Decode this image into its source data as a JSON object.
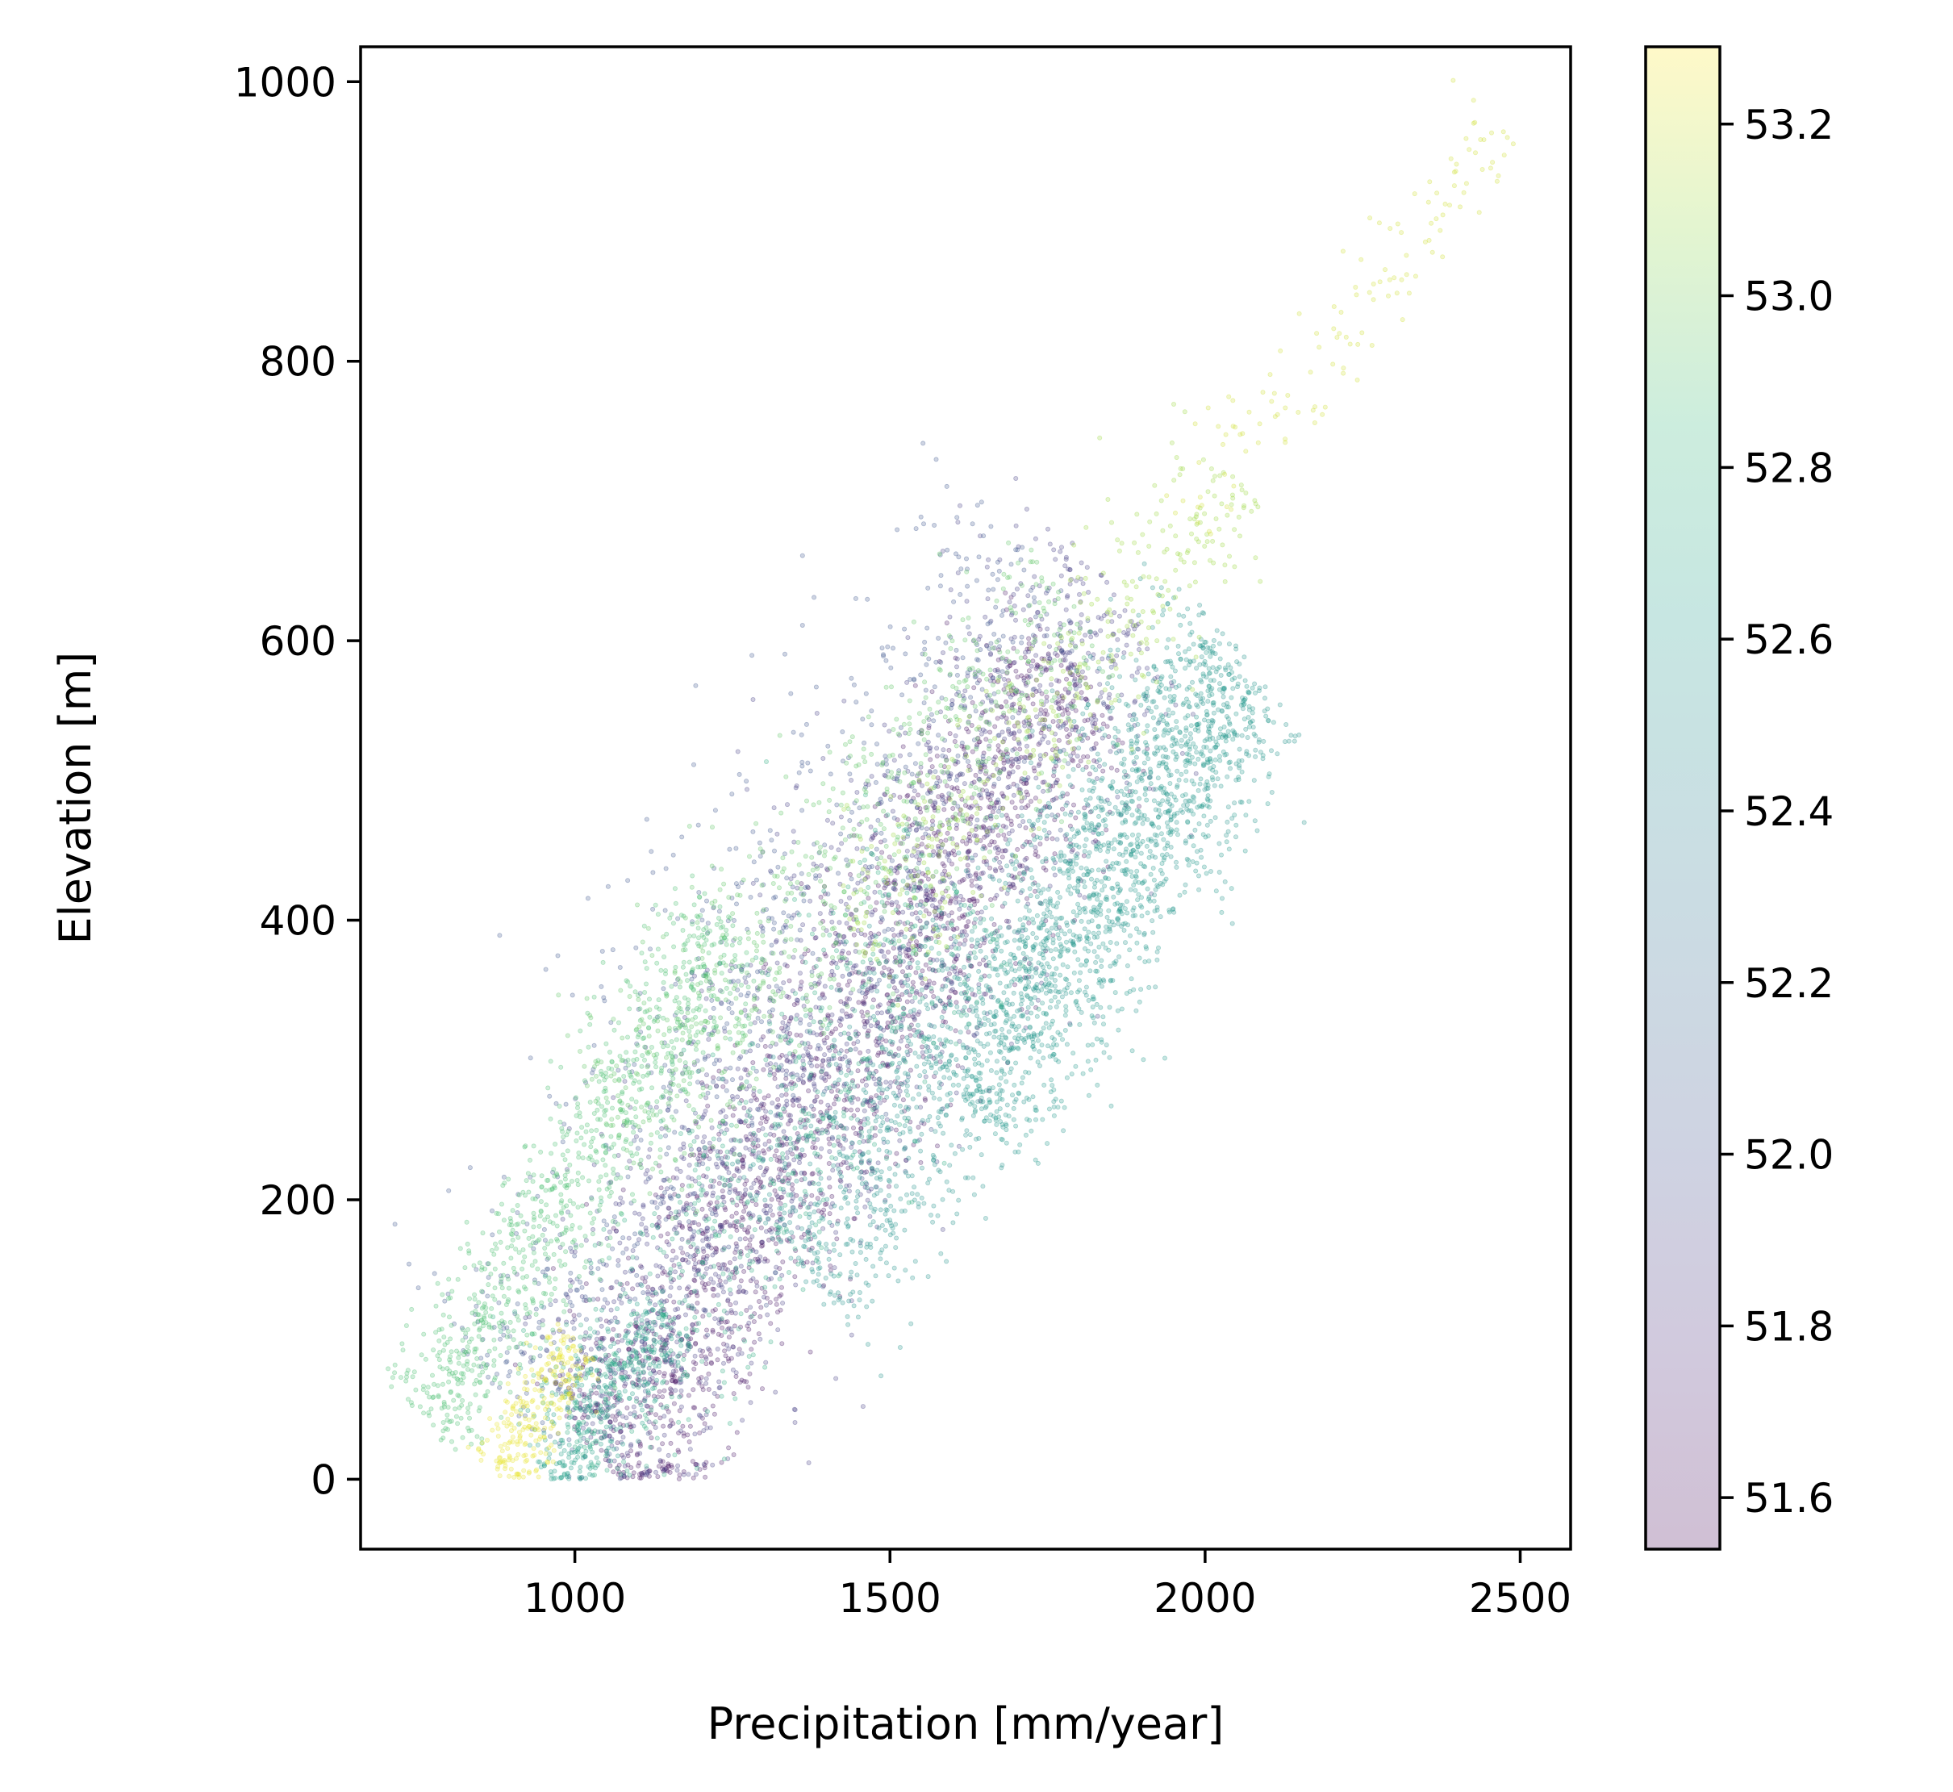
{
  "chart_data": {
    "type": "scatter",
    "xlabel": "Precipitation [mm/year]",
    "ylabel": "Elevation [m]",
    "xlim": [
      660,
      2580
    ],
    "ylim": [
      -50,
      1025
    ],
    "x_ticks": [
      1000,
      1500,
      2000,
      2500
    ],
    "y_ticks": [
      0,
      200,
      400,
      600,
      800,
      1000
    ],
    "grid": false,
    "legend": "none",
    "marker_alpha": 0.25,
    "colorbar": {
      "colormap": "viridis",
      "range": [
        51.54,
        53.29
      ],
      "ticks": [
        51.6,
        51.8,
        52.0,
        52.2,
        52.4,
        52.6,
        52.8,
        53.0,
        53.2
      ],
      "tick_labels": [
        "51.6",
        "51.8",
        "52.0",
        "52.2",
        "52.4",
        "52.6",
        "52.8",
        "53.0",
        "53.2"
      ]
    },
    "point_clusters": [
      {
        "c": 51.65,
        "x0": 1050,
        "y0": 10,
        "x1": 1800,
        "y1": 580,
        "spread": 55,
        "n": 1900
      },
      {
        "c": 51.9,
        "x0": 1020,
        "y0": 30,
        "x1": 1850,
        "y1": 640,
        "spread": 75,
        "n": 1700
      },
      {
        "c": 52.05,
        "x0": 880,
        "y0": 60,
        "x1": 1750,
        "y1": 650,
        "spread": 90,
        "n": 900
      },
      {
        "c": 52.55,
        "x0": 1350,
        "y0": 150,
        "x1": 2060,
        "y1": 590,
        "spread": 60,
        "n": 1500
      },
      {
        "c": 52.6,
        "x0": 1640,
        "y0": 260,
        "x1": 2050,
        "y1": 580,
        "spread": 45,
        "n": 1000
      },
      {
        "c": 52.65,
        "x0": 960,
        "y0": 0,
        "x1": 1150,
        "y1": 120,
        "spread": 25,
        "n": 350
      },
      {
        "c": 52.75,
        "x0": 1000,
        "y0": 20,
        "x1": 1600,
        "y1": 430,
        "spread": 60,
        "n": 700
      },
      {
        "c": 52.9,
        "x0": 760,
        "y0": 40,
        "x1": 1250,
        "y1": 400,
        "spread": 35,
        "n": 900
      },
      {
        "c": 52.95,
        "x0": 1050,
        "y0": 250,
        "x1": 1800,
        "y1": 620,
        "spread": 60,
        "n": 700
      },
      {
        "c": 53.1,
        "x0": 1450,
        "y0": 380,
        "x1": 2050,
        "y1": 720,
        "spread": 40,
        "n": 400
      },
      {
        "c": 53.2,
        "x0": 1950,
        "y0": 680,
        "x1": 2480,
        "y1": 970,
        "spread": 25,
        "n": 130
      },
      {
        "c": 53.25,
        "x0": 880,
        "y0": 0,
        "x1": 1000,
        "y1": 100,
        "spread": 20,
        "n": 250
      }
    ]
  }
}
